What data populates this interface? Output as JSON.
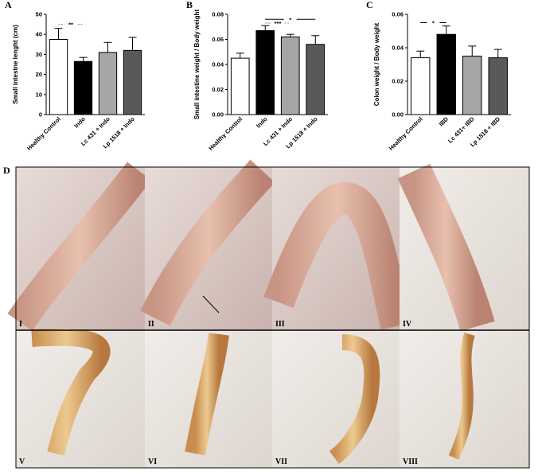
{
  "chart_data": [
    {
      "type": "bar",
      "panel": "A",
      "ylabel": "Small intestne lenght (cm)",
      "categories": [
        "Healthy Control",
        "Indo",
        "Lc 431 + Indo",
        "Lp 1518 + Indo"
      ],
      "values": [
        37.5,
        26.5,
        31,
        32
      ],
      "errors": [
        5.5,
        2,
        5,
        6.5
      ],
      "colors": [
        "#ffffff",
        "#000000",
        "#a6a6a6",
        "#595959"
      ],
      "ylim": [
        0,
        50
      ],
      "yticks": [
        0,
        10,
        20,
        30,
        40,
        50
      ],
      "significance": [
        {
          "label": "**",
          "bars": [
            0,
            1
          ],
          "y": 45,
          "dashed": true
        }
      ]
    },
    {
      "type": "bar",
      "panel": "B",
      "ylabel": "Small intestine weight / Body weight",
      "categories": [
        "Healthy Control",
        "Indo",
        "Lc 431 + Indo",
        "Lp 1518 + Indo"
      ],
      "values": [
        0.045,
        0.067,
        0.062,
        0.056
      ],
      "errors": [
        0.004,
        0.004,
        0.002,
        0.007
      ],
      "colors": [
        "#ffffff",
        "#000000",
        "#a6a6a6",
        "#595959"
      ],
      "ylim": [
        0,
        0.08
      ],
      "yticks": [
        {
          "value": 0,
          "label": "0.00"
        },
        {
          "value": 0.02,
          "label": "0.02"
        },
        {
          "value": 0.04,
          "label": "0.04"
        },
        {
          "value": 0.06,
          "label": "0.06"
        },
        {
          "value": 0.08,
          "label": "0.08"
        }
      ],
      "significance": [
        {
          "label": "*",
          "bars": [
            1,
            3
          ],
          "y": 0.076,
          "dashed": false
        },
        {
          "label": "***",
          "bars": [
            1,
            2
          ],
          "y": 0.073,
          "dashed": true
        }
      ]
    },
    {
      "type": "bar",
      "panel": "C",
      "ylabel": "Colon weight / Body weight",
      "categories": [
        "Healthy Control",
        "IBD",
        "Lc 431+ IBD",
        "Lp 1518 + IBD"
      ],
      "values": [
        0.034,
        0.048,
        0.035,
        0.034
      ],
      "errors": [
        0.004,
        0.005,
        0.006,
        0.005
      ],
      "colors": [
        "#ffffff",
        "#000000",
        "#a6a6a6",
        "#595959"
      ],
      "ylim": [
        0,
        0.06
      ],
      "yticks": [
        {
          "value": 0,
          "label": "0.00"
        },
        {
          "value": 0.02,
          "label": "0.02"
        },
        {
          "value": 0.04,
          "label": "0.04"
        },
        {
          "value": 0.06,
          "label": "0.06"
        }
      ],
      "significance": [
        {
          "label": "*",
          "bars": [
            0,
            1
          ],
          "y": 0.055,
          "dashed": false
        }
      ]
    }
  ],
  "photos": {
    "panel": "D",
    "images": [
      "I",
      "II",
      "III",
      "IV",
      "V",
      "VI",
      "VII",
      "VIII"
    ]
  }
}
